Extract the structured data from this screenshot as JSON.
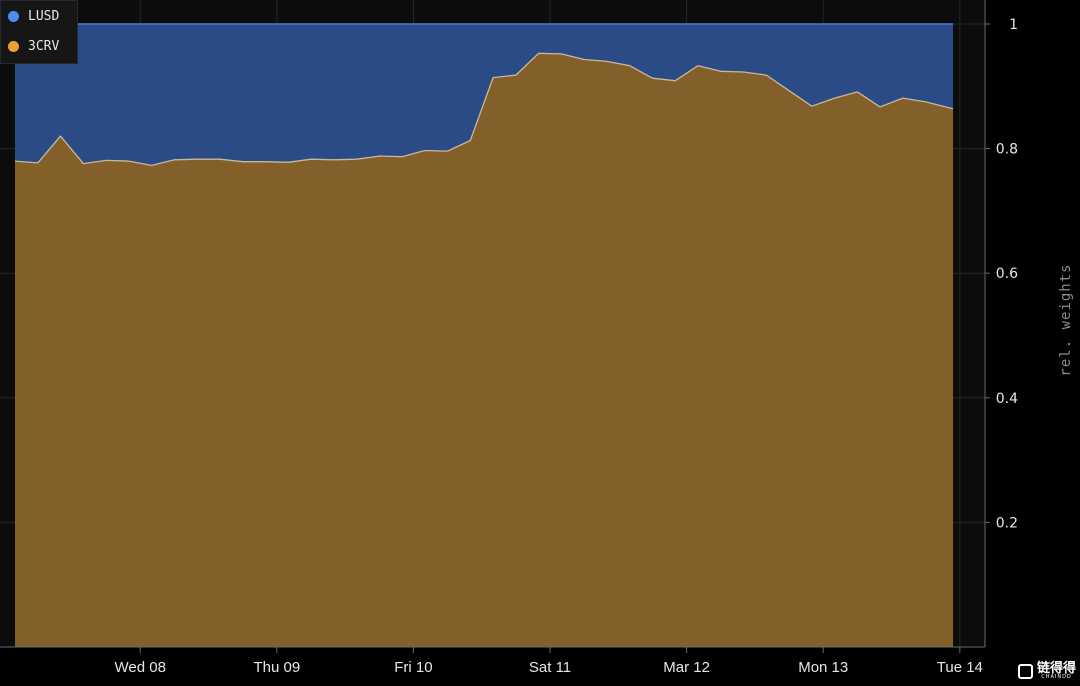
{
  "chart_data": {
    "type": "area",
    "stacked": true,
    "y_axis_side": "right",
    "ylabel": "rel. weights",
    "ylim": [
      0,
      1
    ],
    "yticks": [
      {
        "value": 0.2,
        "label": "0.2"
      },
      {
        "value": 0.4,
        "label": "0.4"
      },
      {
        "value": 0.6,
        "label": "0.6"
      },
      {
        "value": 0.8,
        "label": "0.8"
      },
      {
        "value": 1.0,
        "label": "1"
      }
    ],
    "xlim": [
      -3.0,
      38.2
    ],
    "xticks": [
      {
        "value": 2.5,
        "label": "Wed 08"
      },
      {
        "value": 8.5,
        "label": "Thu 09"
      },
      {
        "value": 14.5,
        "label": "Fri 10"
      },
      {
        "value": 20.5,
        "label": "Sat 11"
      },
      {
        "value": 26.5,
        "label": "Mar 12"
      },
      {
        "value": 32.5,
        "label": "Mon 13"
      },
      {
        "value": 38.5,
        "label": "Tue 14"
      }
    ],
    "grid": true,
    "legend_position": "top-left",
    "colors": {
      "LUSD": "#2c4f8c",
      "3CRV": "#83602a",
      "line": "#c8b89a",
      "top_line": "#4a7fd6"
    },
    "series": [
      {
        "name": "3CRV",
        "color": "#83602a",
        "x": [
          -3,
          -2,
          -1,
          0,
          1,
          2,
          3,
          4,
          5,
          6,
          7,
          8,
          9,
          10,
          11,
          12,
          13,
          14,
          15,
          16,
          17,
          18,
          19,
          20,
          21,
          22,
          23,
          24,
          25,
          26,
          27,
          28,
          29,
          30,
          31,
          32,
          33,
          34,
          35,
          36,
          37,
          38.2
        ],
        "values": [
          0.78,
          0.777,
          0.82,
          0.776,
          0.781,
          0.78,
          0.773,
          0.782,
          0.783,
          0.783,
          0.779,
          0.779,
          0.778,
          0.783,
          0.782,
          0.783,
          0.788,
          0.787,
          0.797,
          0.796,
          0.813,
          0.914,
          0.918,
          0.953,
          0.952,
          0.943,
          0.94,
          0.933,
          0.913,
          0.909,
          0.933,
          0.924,
          0.923,
          0.918,
          0.893,
          0.868,
          0.881,
          0.891,
          0.867,
          0.881,
          0.875,
          0.864
        ]
      },
      {
        "name": "LUSD",
        "color": "#2c4f8c",
        "x": [
          -3,
          -2,
          -1,
          0,
          1,
          2,
          3,
          4,
          5,
          6,
          7,
          8,
          9,
          10,
          11,
          12,
          13,
          14,
          15,
          16,
          17,
          18,
          19,
          20,
          21,
          22,
          23,
          24,
          25,
          26,
          27,
          28,
          29,
          30,
          31,
          32,
          33,
          34,
          35,
          36,
          37,
          38.2
        ],
        "values": [
          0.22,
          0.223,
          0.18,
          0.224,
          0.219,
          0.22,
          0.227,
          0.218,
          0.217,
          0.217,
          0.221,
          0.221,
          0.222,
          0.217,
          0.218,
          0.217,
          0.212,
          0.213,
          0.203,
          0.204,
          0.187,
          0.086,
          0.082,
          0.047,
          0.048,
          0.057,
          0.06,
          0.067,
          0.087,
          0.091,
          0.067,
          0.076,
          0.077,
          0.082,
          0.107,
          0.132,
          0.119,
          0.109,
          0.133,
          0.119,
          0.125,
          0.136
        ]
      }
    ]
  },
  "legend": {
    "items": [
      {
        "label": "LUSD",
        "color": "#4a8ff0"
      },
      {
        "label": "3CRV",
        "color": "#f0a030"
      }
    ]
  },
  "watermark": {
    "main": "链得得",
    "sub": "CHAINDD"
  }
}
